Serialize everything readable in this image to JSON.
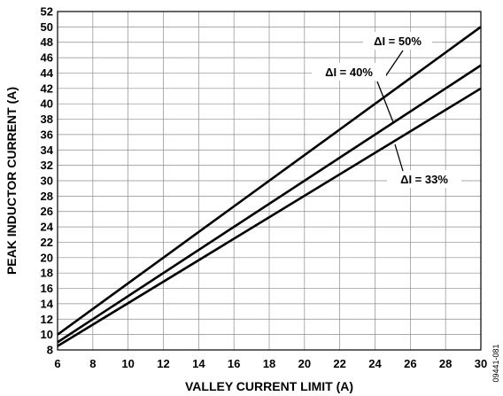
{
  "chart_data": {
    "type": "line",
    "title": "",
    "xlabel": "VALLEY CURRENT LIMIT (A)",
    "ylabel": "PEAK INDUCTOR CURRENT (A)",
    "xlim": [
      6,
      30
    ],
    "ylim": [
      8,
      52
    ],
    "x_ticks": [
      6,
      8,
      10,
      12,
      14,
      16,
      18,
      20,
      22,
      24,
      26,
      28,
      30
    ],
    "y_ticks": [
      8,
      10,
      12,
      14,
      16,
      18,
      20,
      22,
      24,
      26,
      28,
      30,
      32,
      34,
      36,
      38,
      40,
      42,
      44,
      46,
      48,
      50,
      52
    ],
    "grid": true,
    "series": [
      {
        "name": "ΔI = 50%",
        "x": [
          6,
          30
        ],
        "y": [
          10,
          50
        ]
      },
      {
        "name": "ΔI = 40%",
        "x": [
          6,
          30
        ],
        "y": [
          9,
          45
        ]
      },
      {
        "name": "ΔI = 33%",
        "x": [
          6,
          30
        ],
        "y": [
          8.5,
          42
        ]
      }
    ],
    "figure_id": "09441-081"
  }
}
